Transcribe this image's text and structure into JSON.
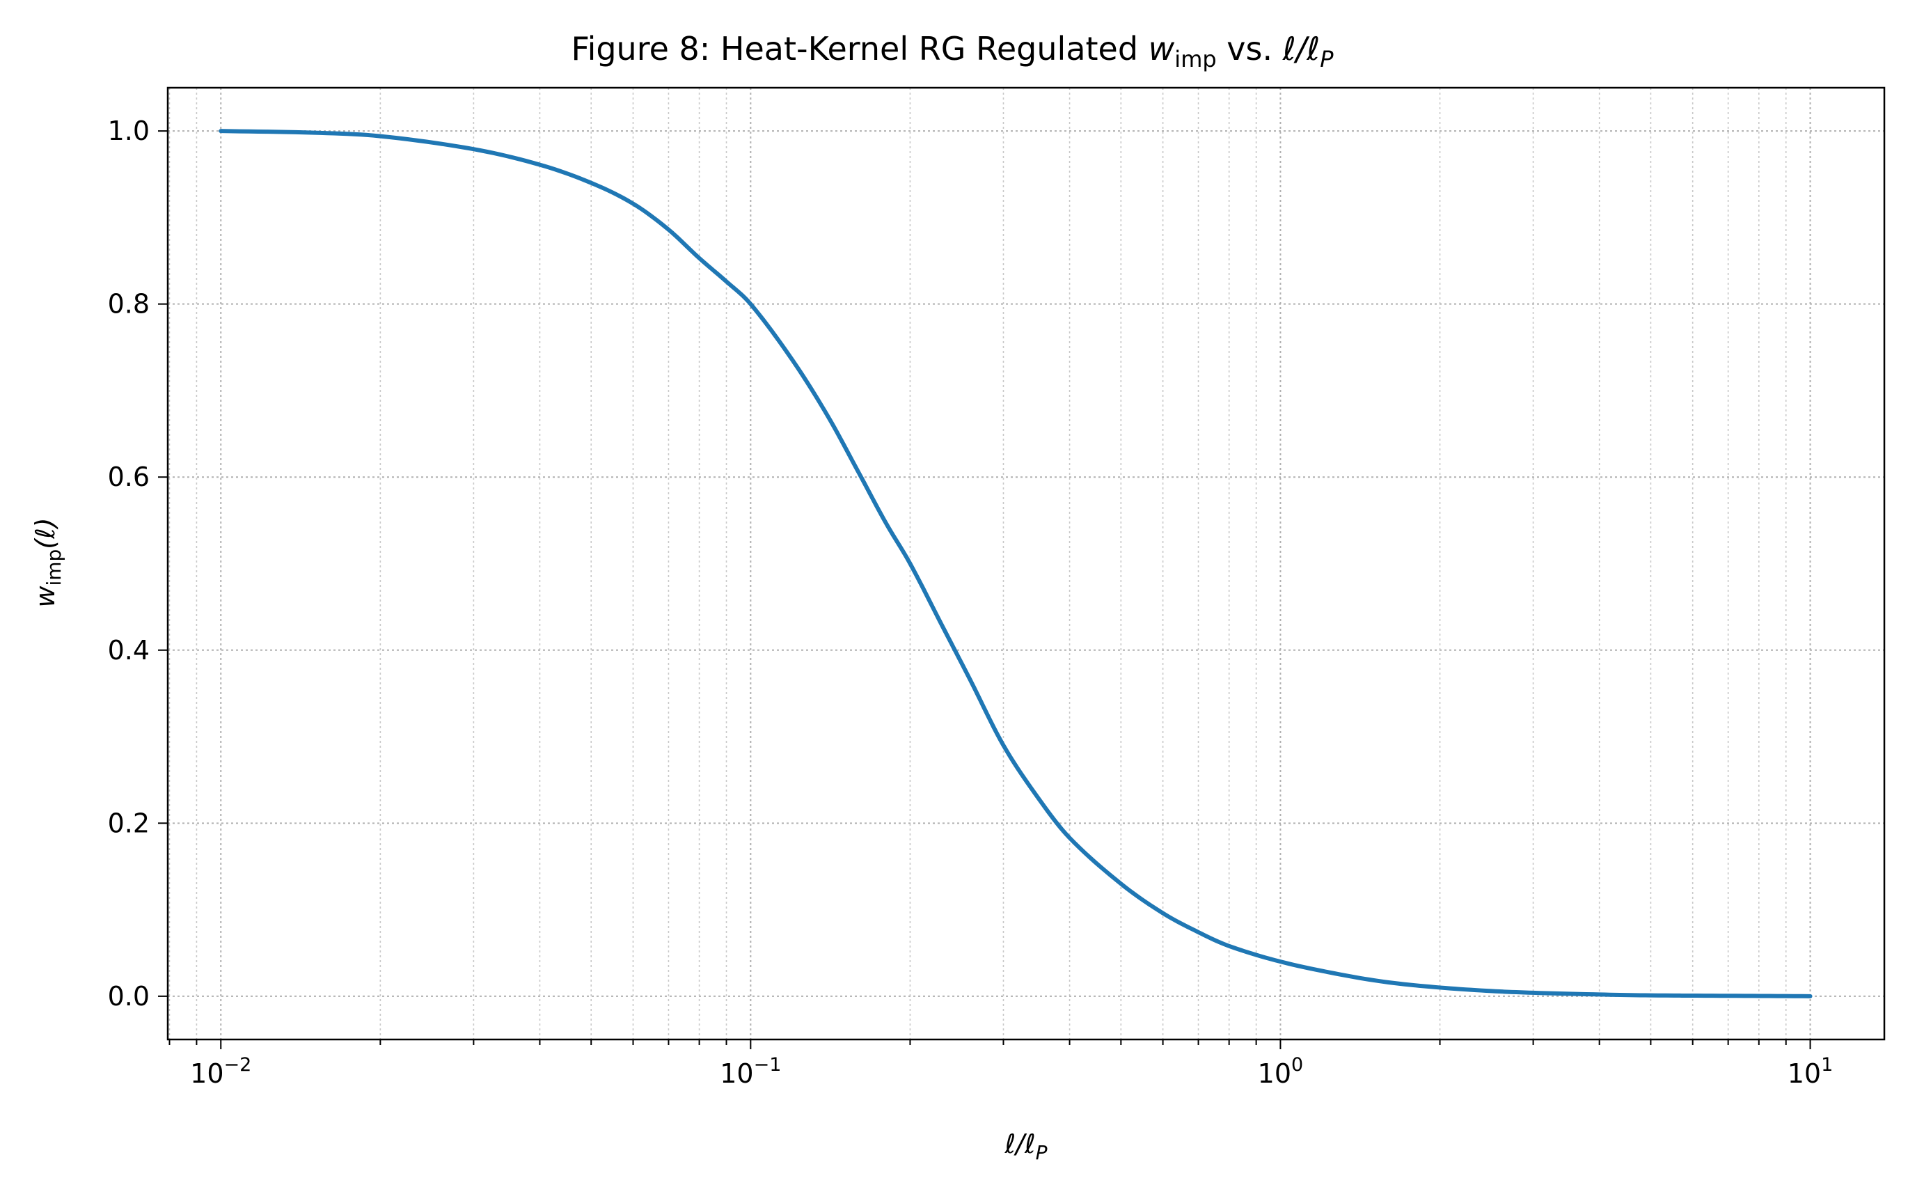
{
  "chart_data": {
    "type": "line",
    "title": {
      "prefix": "Figure 8: Heat-Kernel RG Regulated ",
      "var": "w",
      "sub": "imp",
      "middle": " vs. ",
      "tail": "ℓ/ℓ",
      "tail_sub": "P"
    },
    "xlabel": {
      "text": "ℓ/ℓ",
      "sub": "P"
    },
    "ylabel": {
      "var": "w",
      "sub": "imp",
      "arg": "(ℓ)"
    },
    "xscale": "log",
    "xlim": [
      0.00794,
      13.8
    ],
    "ylim": [
      -0.05,
      1.05
    ],
    "xticks": [
      {
        "value": 0.01,
        "base": "10",
        "exp": "−2"
      },
      {
        "value": 0.1,
        "base": "10",
        "exp": "−1"
      },
      {
        "value": 1,
        "base": "10",
        "exp": "0"
      },
      {
        "value": 10,
        "base": "10",
        "exp": "1"
      }
    ],
    "yticks": [
      {
        "value": 0.0,
        "label": "0.0"
      },
      {
        "value": 0.2,
        "label": "0.2"
      },
      {
        "value": 0.4,
        "label": "0.4"
      },
      {
        "value": 0.6,
        "label": "0.6"
      },
      {
        "value": 0.8,
        "label": "0.8"
      },
      {
        "value": 1.0,
        "label": "1.0"
      }
    ],
    "grid": {
      "major": true,
      "minor": true,
      "style": "dotted"
    },
    "series": [
      {
        "color": "#1f77b4",
        "x": [
          0.01,
          0.015,
          0.02,
          0.03,
          0.04,
          0.05,
          0.06,
          0.07,
          0.08,
          0.09,
          0.1,
          0.12,
          0.14,
          0.16,
          0.18,
          0.2,
          0.23,
          0.26,
          0.3,
          0.35,
          0.4,
          0.5,
          0.6,
          0.7,
          0.8,
          1.0,
          1.3,
          1.6,
          2.0,
          2.5,
          3.0,
          4.0,
          5.0,
          7.0,
          10.0
        ],
        "y": [
          1.0,
          0.998,
          0.994,
          0.979,
          0.961,
          0.94,
          0.916,
          0.886,
          0.853,
          0.826,
          0.8,
          0.735,
          0.67,
          0.605,
          0.547,
          0.5,
          0.428,
          0.365,
          0.29,
          0.228,
          0.183,
          0.13,
          0.096,
          0.074,
          0.058,
          0.04,
          0.025,
          0.016,
          0.01,
          0.006,
          0.004,
          0.002,
          0.001,
          0.0005,
          0.0
        ]
      }
    ]
  }
}
